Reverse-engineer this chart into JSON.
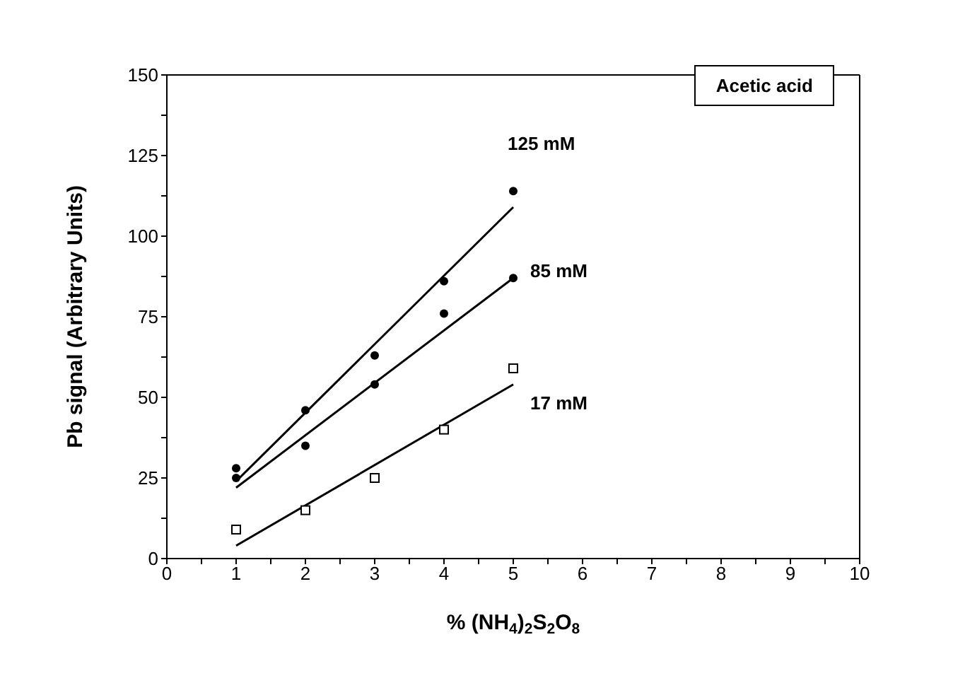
{
  "chart_data": {
    "type": "scatter",
    "xlabel": "% (NH$_{4}$)$_{2}$S$_{2}$O$_{8}$",
    "ylabel": "Pb signal (Arbitrary Units)",
    "xlim": [
      0,
      10
    ],
    "ylim": [
      0,
      150
    ],
    "xticks": [
      0,
      {
        "value": 0.5,
        "label": null
      },
      1,
      {
        "value": 1.5,
        "label": null
      },
      2,
      {
        "value": 2.5,
        "label": null
      },
      3,
      {
        "value": 3.5,
        "label": null
      },
      4,
      {
        "value": 4.5,
        "label": null
      },
      5,
      {
        "value": 5.5,
        "label": null
      },
      6,
      {
        "value": 6.5,
        "label": null
      },
      7,
      {
        "value": 7.5,
        "label": null
      },
      8,
      {
        "value": 8.5,
        "label": null
      },
      9,
      {
        "value": 9.5,
        "label": null
      },
      10
    ],
    "yticks": [
      0,
      {
        "value": 12.5,
        "label": null
      },
      25,
      {
        "value": 37.5,
        "label": null
      },
      50,
      {
        "value": 62.5,
        "label": null
      },
      75,
      {
        "value": 87.5,
        "label": null
      },
      100,
      {
        "value": 112.5,
        "label": null
      },
      125,
      {
        "value": 137.5,
        "label": null
      },
      150
    ],
    "grid": false,
    "legend": false,
    "series": [
      {
        "marker": "circle",
        "color": "#000000",
        "x": [
          1,
          2,
          3,
          4,
          5
        ],
        "values": [
          28,
          46,
          63,
          86,
          114
        ]
      },
      {
        "marker": "circle",
        "color": "#000000",
        "x": [
          1,
          2,
          3,
          4,
          5
        ],
        "values": [
          25,
          35,
          54,
          76,
          87
        ]
      },
      {
        "marker": "square",
        "color": "#000000",
        "x": [
          1,
          2,
          3,
          4,
          5
        ],
        "values": [
          9,
          15,
          25,
          40,
          59
        ]
      },
      {
        "type": "line",
        "name": "125 mM",
        "marker": "none",
        "line_style": "solid",
        "color": "#000000",
        "x": [
          1,
          5
        ],
        "values": [
          24,
          109
        ]
      },
      {
        "type": "line",
        "name": "85 mM",
        "marker": "none",
        "line_style": "solid",
        "color": "#000000",
        "x": [
          1,
          5
        ],
        "values": [
          22,
          87
        ]
      },
      {
        "type": "line",
        "name": "17 mM",
        "marker": "none",
        "line_style": "solid",
        "color": "#000000",
        "x": [
          1,
          5
        ],
        "values": [
          4,
          54
        ]
      }
    ],
    "annotations": [
      "Acetic acid"
    ]
  }
}
